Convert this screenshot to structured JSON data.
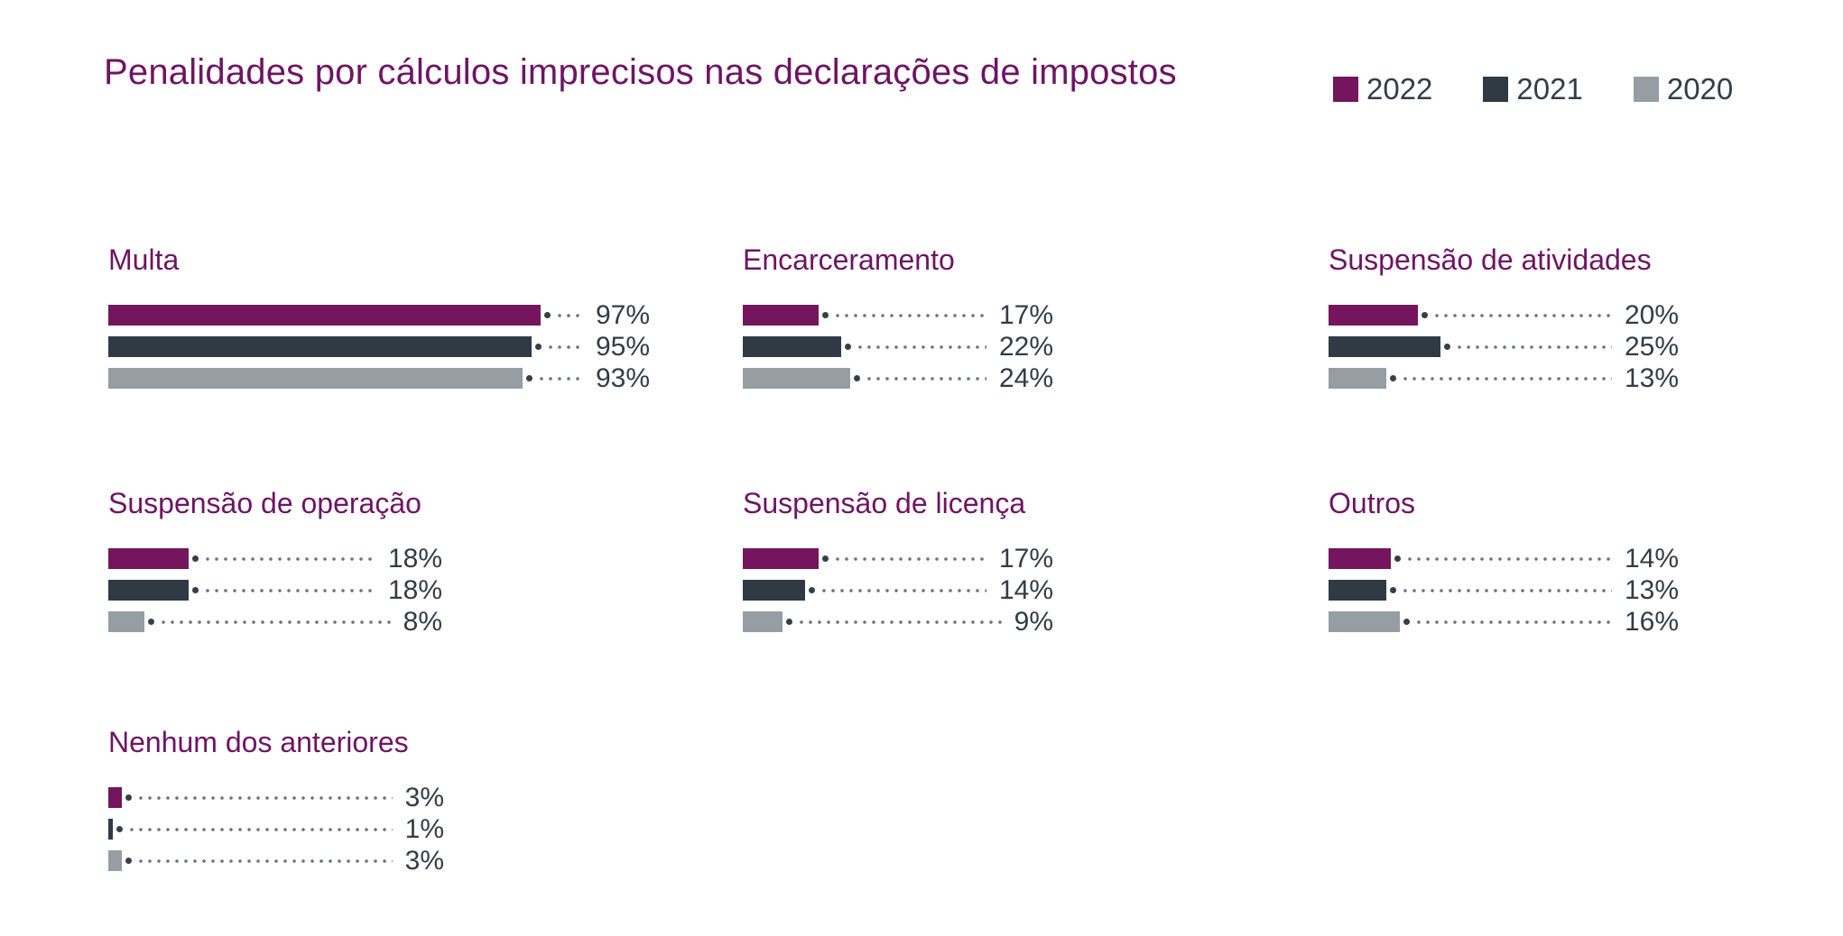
{
  "title": "Penalidades por cálculos imprecisos nas declarações de impostos",
  "colors": {
    "title_purple": "#6E1563",
    "bar_2022": "#74155E",
    "bar_2021": "#2F3A44",
    "bar_2020": "#969DA3",
    "value_text": "#323C46",
    "legend_text": "#333D47",
    "leader_dots": "#6A747C",
    "background": "#FFFFFF"
  },
  "legend": {
    "items": [
      {
        "label": "2022",
        "color": "#74155E"
      },
      {
        "label": "2021",
        "color": "#2F3A44"
      },
      {
        "label": "2020",
        "color": "#969DA3"
      }
    ]
  },
  "chart_data": {
    "type": "bar",
    "orientation": "horizontal",
    "title": "Penalidades por cálculos imprecisos nas declarações de impostos",
    "unit": "%",
    "series_years": [
      "2022",
      "2021",
      "2020"
    ],
    "groups": [
      {
        "label": "Multa",
        "values": [
          97,
          95,
          93
        ],
        "value_labels": [
          "97%",
          "95%",
          "93%"
        ]
      },
      {
        "label": "Encarceramento",
        "values": [
          17,
          22,
          24
        ],
        "value_labels": [
          "17%",
          "22%",
          "24%"
        ]
      },
      {
        "label": "Suspensão de atividades",
        "values": [
          20,
          25,
          13
        ],
        "value_labels": [
          "20%",
          "25%",
          "13%"
        ]
      },
      {
        "label": "Suspensão de operação",
        "values": [
          18,
          18,
          8
        ],
        "value_labels": [
          "18%",
          "18%",
          "8%"
        ]
      },
      {
        "label": "Suspensão de licença",
        "values": [
          17,
          14,
          9
        ],
        "value_labels": [
          "17%",
          "14%",
          "9%"
        ]
      },
      {
        "label": "Outros",
        "values": [
          14,
          13,
          16
        ],
        "value_labels": [
          "14%",
          "13%",
          "16%"
        ]
      },
      {
        "label": "Nenhum dos anteriores",
        "values": [
          3,
          1,
          3
        ],
        "value_labels": [
          "3%",
          "1%",
          "3%"
        ]
      }
    ],
    "layout_hints": {
      "legend_position": "top-right",
      "arrangement": "small multiples, 3 columns",
      "value_labels": "right-aligned with dotted leader lines and end dots",
      "axis_range_pct": [
        0,
        100
      ],
      "grid": "off"
    }
  }
}
